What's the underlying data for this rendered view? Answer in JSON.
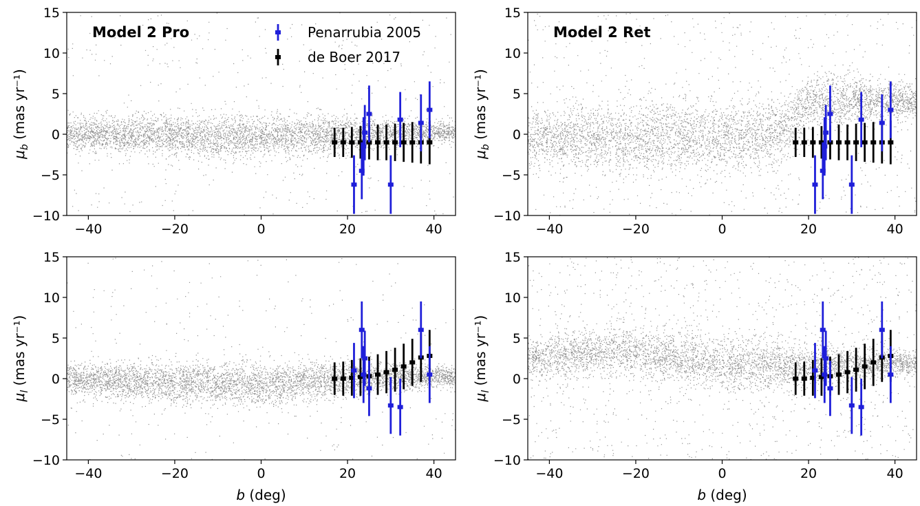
{
  "chart_data": [
    {
      "panel": "top-left",
      "type": "scatter",
      "title": "Model 2 Pro",
      "xlabel": "",
      "ylabel": "μ_b (mas yr⁻¹)",
      "xlim": [
        -45,
        45
      ],
      "ylim": [
        -10,
        15
      ],
      "xticks": [
        -40,
        -20,
        0,
        20,
        40
      ],
      "yticks": [
        -10,
        -5,
        0,
        5,
        10,
        15
      ],
      "legend": {
        "placement": "top-center",
        "entries": [
          "Penarrubia 2005",
          "de Boer 2017"
        ]
      },
      "scatter_model": {
        "x_range": [
          -45,
          45
        ],
        "y_center": [
          [
            -45,
            0
          ],
          [
            0,
            -0.3
          ],
          [
            20,
            0
          ],
          [
            45,
            0.3
          ]
        ],
        "y_spread": 1.3,
        "outlier_fraction": 0.08
      },
      "series": [
        {
          "name": "Penarrubia 2005",
          "color": "#1f1fd9",
          "x": [
            21.5,
            23.3,
            23.7,
            24.0,
            25.0,
            30.0,
            32.2,
            37.0,
            39.0
          ],
          "y": [
            -6.2,
            -4.5,
            -1.5,
            0.2,
            2.5,
            -6.2,
            1.8,
            1.4,
            3.0
          ],
          "yerr": [
            3.6,
            3.5,
            3.6,
            3.4,
            3.5,
            3.6,
            3.4,
            3.5,
            3.5
          ]
        },
        {
          "name": "de Boer 2017",
          "color": "#000000",
          "x": [
            17,
            19,
            21,
            23,
            25,
            27,
            29,
            31,
            33,
            35,
            37,
            39
          ],
          "y": [
            -1.0,
            -1.0,
            -1.0,
            -1.0,
            -1.0,
            -1.0,
            -1.0,
            -1.0,
            -1.0,
            -1.0,
            -1.0,
            -1.0
          ],
          "yerr": [
            1.8,
            1.8,
            1.9,
            2.0,
            2.1,
            2.2,
            2.2,
            2.3,
            2.4,
            2.5,
            2.6,
            2.7
          ]
        }
      ]
    },
    {
      "panel": "top-right",
      "type": "scatter",
      "title": "Model 2 Ret",
      "xlabel": "",
      "ylabel": "μ_b (mas yr⁻¹)",
      "xlim": [
        -45,
        45
      ],
      "ylim": [
        -10,
        15
      ],
      "xticks": [
        -40,
        -20,
        0,
        20,
        40
      ],
      "yticks": [
        -10,
        -5,
        0,
        5,
        10,
        15
      ],
      "scatter_model": {
        "x_range": [
          -45,
          45
        ],
        "y_center": [
          [
            -45,
            -0.5
          ],
          [
            -20,
            -0.5
          ],
          [
            0,
            -0.3
          ],
          [
            15,
            0.3
          ],
          [
            20,
            4.0
          ]
        ],
        "y_spread": 2.2,
        "outlier_fraction": 0.12
      },
      "series": [
        {
          "name": "Penarrubia 2005",
          "color": "#1f1fd9",
          "x": [
            21.5,
            23.3,
            23.7,
            24.0,
            25.0,
            30.0,
            32.2,
            37.0,
            39.0
          ],
          "y": [
            -6.2,
            -4.5,
            -1.5,
            0.2,
            2.5,
            -6.2,
            1.8,
            1.4,
            3.0
          ],
          "yerr": [
            3.6,
            3.5,
            3.6,
            3.4,
            3.5,
            3.6,
            3.4,
            3.5,
            3.5
          ]
        },
        {
          "name": "de Boer 2017",
          "color": "#000000",
          "x": [
            17,
            19,
            21,
            23,
            25,
            27,
            29,
            31,
            33,
            35,
            37,
            39
          ],
          "y": [
            -1.0,
            -1.0,
            -1.0,
            -1.0,
            -1.0,
            -1.0,
            -1.0,
            -1.0,
            -1.0,
            -1.0,
            -1.0,
            -1.0
          ],
          "yerr": [
            1.8,
            1.8,
            1.9,
            2.0,
            2.1,
            2.2,
            2.2,
            2.3,
            2.4,
            2.5,
            2.6,
            2.7
          ]
        }
      ]
    },
    {
      "panel": "bottom-left",
      "type": "scatter",
      "title": "",
      "xlabel": "b (deg)",
      "ylabel": "μ_l (mas yr⁻¹)",
      "xlim": [
        -45,
        45
      ],
      "ylim": [
        -10,
        15
      ],
      "xticks": [
        -40,
        -20,
        0,
        20,
        40
      ],
      "yticks": [
        -10,
        -5,
        0,
        5,
        10,
        15
      ],
      "scatter_model": {
        "x_range": [
          -45,
          45
        ],
        "y_center": [
          [
            -45,
            0
          ],
          [
            -20,
            -0.5
          ],
          [
            0,
            -0.8
          ],
          [
            20,
            0
          ],
          [
            45,
            0.3
          ]
        ],
        "y_spread": 1.3,
        "outlier_fraction": 0.06
      },
      "series": [
        {
          "name": "Penarrubia 2005",
          "color": "#1f1fd9",
          "x": [
            21.5,
            23.3,
            23.7,
            24.0,
            25.0,
            30.0,
            32.2,
            37.0,
            39.0
          ],
          "y": [
            1.0,
            6.0,
            0.5,
            2.5,
            -1.2,
            -3.3,
            -3.5,
            6.0,
            0.5
          ],
          "yerr": [
            3.4,
            3.5,
            3.5,
            3.4,
            3.4,
            3.5,
            3.5,
            3.5,
            3.5
          ]
        },
        {
          "name": "de Boer 2017",
          "color": "#000000",
          "x": [
            17,
            19,
            21,
            23,
            25,
            27,
            29,
            31,
            33,
            35,
            37,
            39
          ],
          "y": [
            0.0,
            0.0,
            0.1,
            0.2,
            0.3,
            0.5,
            0.8,
            1.1,
            1.5,
            2.0,
            2.6,
            2.8
          ],
          "yerr": [
            2.0,
            2.1,
            2.2,
            2.3,
            2.4,
            2.5,
            2.6,
            2.7,
            2.8,
            2.9,
            3.0,
            3.2
          ]
        }
      ]
    },
    {
      "panel": "bottom-right",
      "type": "scatter",
      "title": "",
      "xlabel": "b (deg)",
      "ylabel": "μ_l (mas yr⁻¹)",
      "xlim": [
        -45,
        45
      ],
      "ylim": [
        -10,
        15
      ],
      "xticks": [
        -40,
        -20,
        0,
        20,
        40
      ],
      "yticks": [
        -10,
        -5,
        0,
        5,
        10,
        15
      ],
      "scatter_model": {
        "x_range": [
          -45,
          45
        ],
        "y_center": [
          [
            -45,
            2.5
          ],
          [
            -25,
            3.5
          ],
          [
            -10,
            2.5
          ],
          [
            0,
            1.8
          ],
          [
            20,
            1.5
          ],
          [
            45,
            2.0
          ]
        ],
        "y_spread": 1.6,
        "outlier_fraction": 0.18
      },
      "series": [
        {
          "name": "Penarrubia 2005",
          "color": "#1f1fd9",
          "x": [
            21.5,
            23.3,
            23.7,
            24.0,
            25.0,
            30.0,
            32.2,
            37.0,
            39.0
          ],
          "y": [
            1.0,
            6.0,
            0.5,
            2.5,
            -1.2,
            -3.3,
            -3.5,
            6.0,
            0.5
          ],
          "yerr": [
            3.4,
            3.5,
            3.5,
            3.4,
            3.4,
            3.5,
            3.5,
            3.5,
            3.5
          ]
        },
        {
          "name": "de Boer 2017",
          "color": "#000000",
          "x": [
            17,
            19,
            21,
            23,
            25,
            27,
            29,
            31,
            33,
            35,
            37,
            39
          ],
          "y": [
            0.0,
            0.0,
            0.1,
            0.2,
            0.3,
            0.5,
            0.8,
            1.1,
            1.5,
            2.0,
            2.6,
            2.8
          ],
          "yerr": [
            2.0,
            2.1,
            2.2,
            2.3,
            2.4,
            2.5,
            2.6,
            2.7,
            2.8,
            2.9,
            3.0,
            3.2
          ]
        }
      ]
    }
  ]
}
